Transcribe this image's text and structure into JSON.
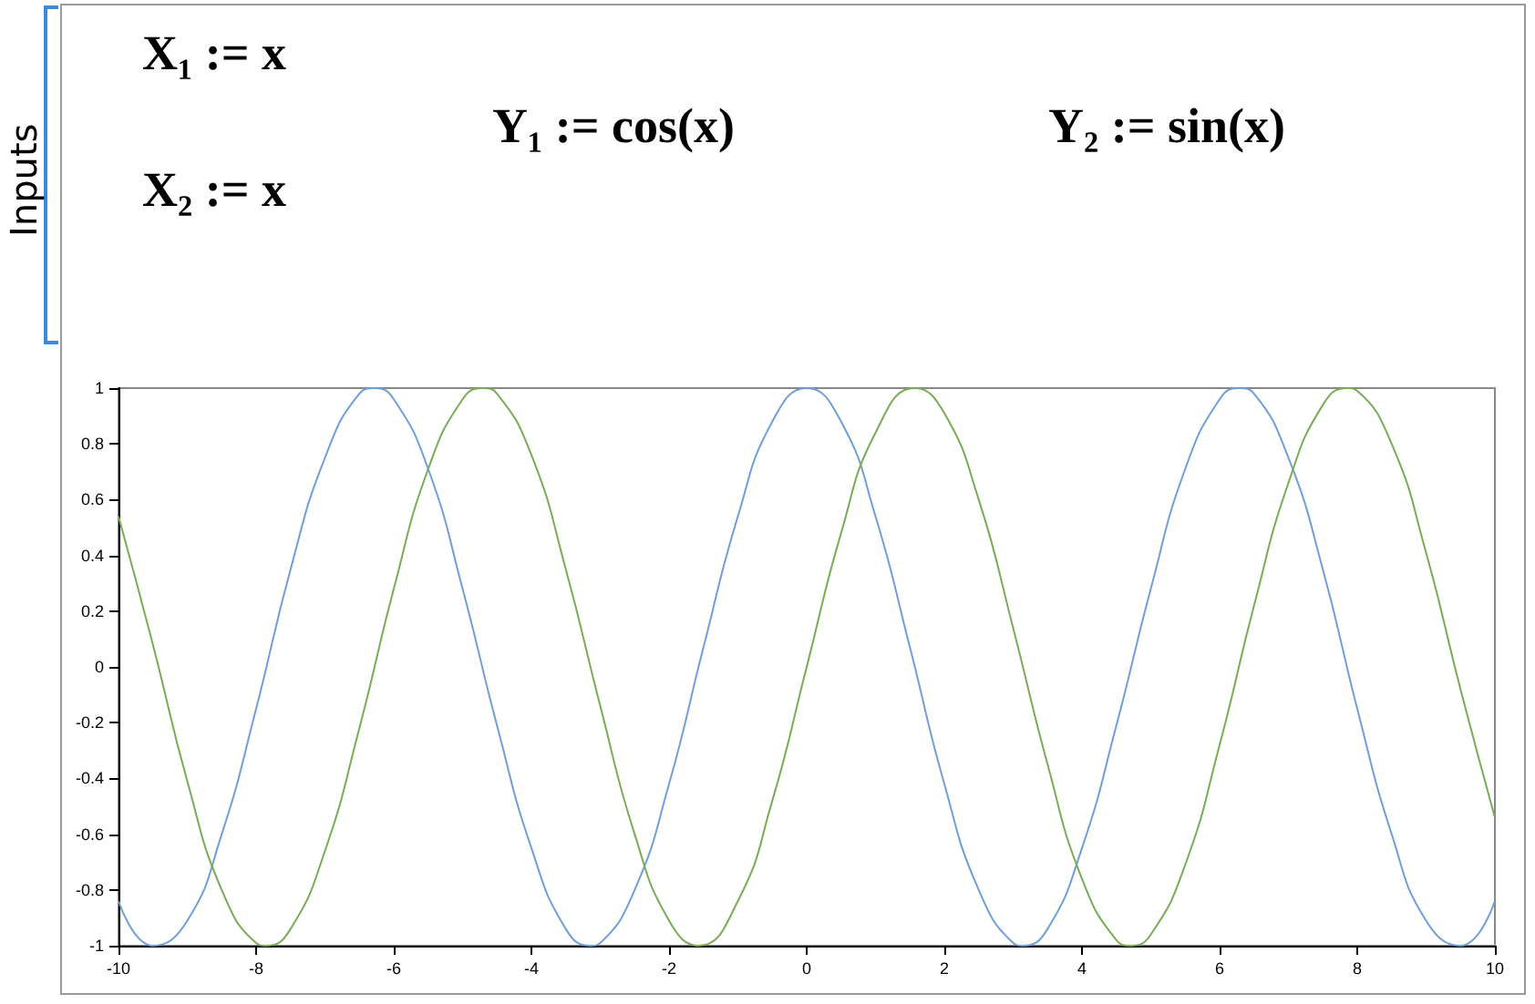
{
  "chart_data": {
    "type": "line",
    "annotations": [
      "Inputs",
      "X₁ := x",
      "X₂ := x",
      "Y₁ := cos(x)",
      "Y₂ := sin(x)"
    ],
    "series": [
      {
        "color": "#6f9fd8",
        "x": [
          -10,
          -9.5,
          -9,
          -8.5,
          -8,
          -7.5,
          -7,
          -6.5,
          -6.28,
          -6,
          -5.5,
          -5,
          -4.5,
          -4,
          -3.5,
          -3.14,
          -3,
          -2.5,
          -2,
          -1.5,
          -1,
          -0.5,
          0,
          0.5,
          1,
          1.5,
          2,
          2.5,
          3,
          3.14,
          3.5,
          4,
          4.5,
          5,
          5.5,
          6,
          6.28,
          6.5,
          7,
          7.5,
          8,
          8.5,
          9,
          9.5,
          10
        ],
        "values": [
          -0.84,
          -1,
          -0.91,
          -0.6,
          -0.15,
          0.35,
          0.75,
          0.98,
          1,
          0.96,
          0.71,
          0.28,
          -0.21,
          -0.65,
          -0.94,
          -1,
          -0.99,
          -0.8,
          -0.42,
          0.07,
          0.54,
          0.88,
          1,
          0.88,
          0.54,
          0.07,
          -0.42,
          -0.8,
          -0.99,
          -1,
          -0.94,
          -0.65,
          -0.21,
          0.28,
          0.71,
          0.96,
          1,
          0.98,
          0.75,
          0.35,
          -0.15,
          -0.6,
          -0.91,
          -1,
          -0.84
        ]
      },
      {
        "color": "#7aab55",
        "x": [
          -10,
          -9.5,
          -9,
          -8.5,
          -8,
          -7.85,
          -7.5,
          -7,
          -6.5,
          -6,
          -5.5,
          -5,
          -4.71,
          -4.5,
          -4,
          -3.5,
          -3,
          -2.5,
          -2,
          -1.57,
          -1,
          -0.5,
          0,
          0.5,
          1,
          1.57,
          2,
          2.5,
          3,
          3.5,
          4,
          4.5,
          4.71,
          5,
          5.5,
          6,
          6.5,
          7,
          7.5,
          7.85,
          8,
          8.5,
          9,
          9.5,
          10
        ],
        "values": [
          0.54,
          0.08,
          -0.41,
          -0.8,
          -0.99,
          -1,
          -0.94,
          -0.66,
          -0.22,
          0.28,
          0.71,
          0.96,
          1,
          0.98,
          0.76,
          0.35,
          -0.14,
          -0.6,
          -0.91,
          -1,
          -0.84,
          -0.48,
          0,
          0.48,
          0.84,
          1,
          0.91,
          0.6,
          0.14,
          -0.35,
          -0.76,
          -0.98,
          -1,
          -0.96,
          -0.71,
          -0.28,
          0.22,
          0.66,
          0.94,
          1,
          0.99,
          0.8,
          0.41,
          -0.08,
          -0.54
        ]
      }
    ],
    "xlim": [
      -10,
      10
    ],
    "xticks": [
      -10,
      -8,
      -6,
      -4,
      -2,
      0,
      2,
      4,
      6,
      8,
      10
    ],
    "ylim": [
      -1,
      1
    ],
    "yticks": [
      -1,
      -0.8,
      -0.6,
      -0.4,
      -0.2,
      0,
      0.2,
      0.4,
      0.6,
      0.8,
      1
    ],
    "grid": false,
    "marker": "none",
    "line_style": "solid"
  }
}
